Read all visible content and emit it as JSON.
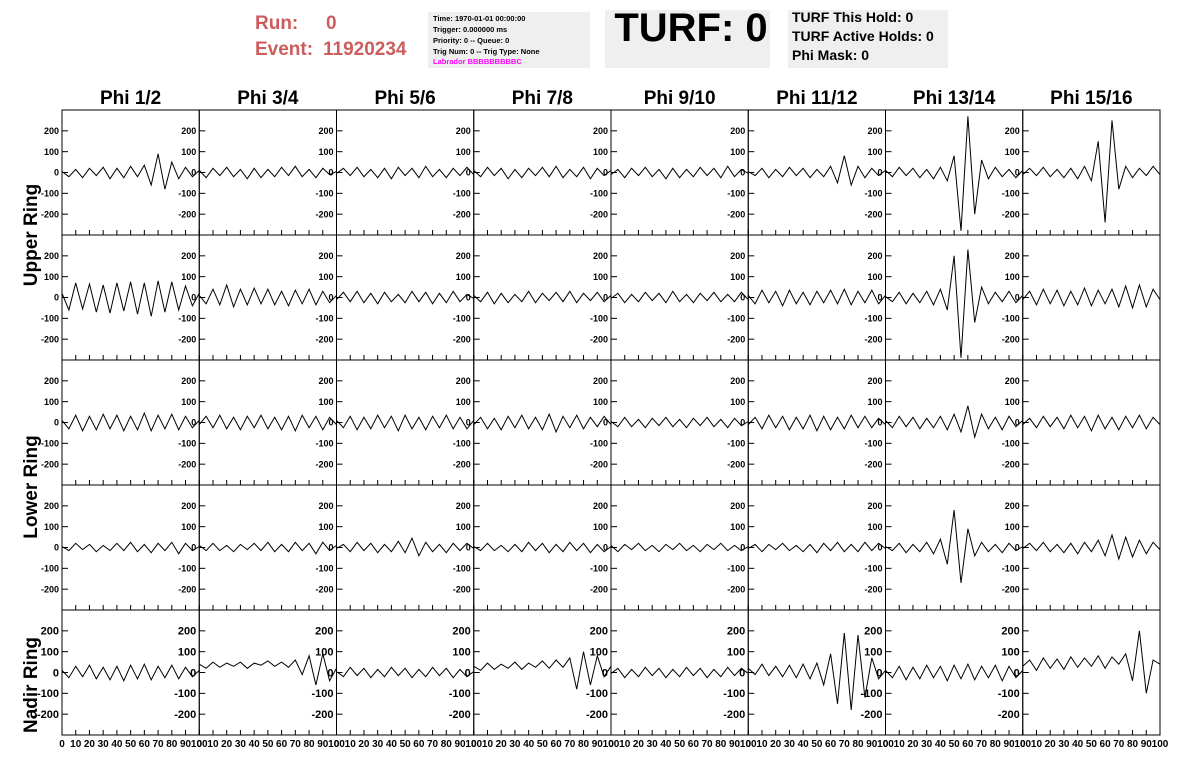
{
  "header": {
    "run_label": "Run:",
    "run": "0",
    "event_label": "Event:",
    "event": "11920234"
  },
  "info": {
    "lines": [
      "Time: 1970-01-01 00:00:00",
      "Trigger: 0.000000 ms",
      "Priority: 0 -- Queue: 0",
      "Trig Num: 0 -- Trig Type: None"
    ],
    "labrador": "Labrador BBBBBBBBBC"
  },
  "turf": "TURF: 0",
  "holds": [
    "TURF This Hold: 0",
    "TURF Active Holds: 0",
    "Phi Mask: 0"
  ],
  "chart_data": {
    "type": "line",
    "columns": [
      "Phi 1/2",
      "Phi 3/4",
      "Phi 5/6",
      "Phi 7/8",
      "Phi 9/10",
      "Phi 11/12",
      "Phi 13/14",
      "Phi 15/16"
    ],
    "row_labels": [
      "Upper Ring",
      "Lower Ring",
      "Nadir Ring"
    ],
    "x": [
      0,
      5,
      10,
      15,
      20,
      25,
      30,
      35,
      40,
      45,
      50,
      55,
      60,
      65,
      70,
      75,
      80,
      85,
      90,
      95,
      100
    ],
    "xlim": [
      0,
      100
    ],
    "ylim": [
      -300,
      300
    ],
    "xticks": [
      0,
      10,
      20,
      30,
      40,
      50,
      60,
      70,
      80,
      90,
      100
    ],
    "yticks": [
      -200,
      -100,
      0,
      100,
      200
    ],
    "color": "#000000",
    "panels": [
      [
        [
          5,
          -20,
          15,
          -25,
          20,
          -15,
          25,
          -30,
          20,
          -25,
          30,
          -20,
          35,
          -60,
          90,
          -80,
          50,
          -30,
          25,
          -20,
          10
        ],
        [
          10,
          -25,
          20,
          -15,
          25,
          -20,
          15,
          -30,
          20,
          -25,
          15,
          -20,
          25,
          -15,
          30,
          -20,
          15,
          -25,
          20,
          -10,
          5
        ],
        [
          -5,
          20,
          -15,
          25,
          -20,
          15,
          -25,
          20,
          -30,
          25,
          -15,
          20,
          -25,
          30,
          -20,
          15,
          -25,
          20,
          -15,
          25,
          -10
        ],
        [
          10,
          -20,
          25,
          -15,
          20,
          -30,
          15,
          -25,
          20,
          -15,
          25,
          -20,
          30,
          -25,
          15,
          -20,
          25,
          -30,
          20,
          -15,
          10
        ],
        [
          -10,
          15,
          -25,
          20,
          -15,
          25,
          -20,
          15,
          -30,
          20,
          -25,
          15,
          -20,
          25,
          -15,
          20,
          -25,
          30,
          -20,
          15,
          -5
        ],
        [
          5,
          -15,
          20,
          -25,
          15,
          -20,
          25,
          -15,
          20,
          -25,
          15,
          -20,
          30,
          -50,
          80,
          -60,
          30,
          -25,
          20,
          -15,
          10
        ],
        [
          10,
          -20,
          25,
          -15,
          20,
          -25,
          15,
          -30,
          25,
          -40,
          80,
          -280,
          270,
          -200,
          60,
          -30,
          25,
          -20,
          15,
          -25,
          10
        ],
        [
          -10,
          20,
          -15,
          25,
          -20,
          15,
          -25,
          20,
          -30,
          30,
          -40,
          150,
          -240,
          250,
          -80,
          30,
          -25,
          20,
          -15,
          30,
          -10
        ]
      ],
      [
        [
          20,
          -60,
          70,
          -55,
          65,
          -70,
          60,
          -75,
          70,
          -65,
          75,
          -80,
          70,
          -90,
          80,
          -70,
          75,
          -60,
          55,
          -40,
          20
        ],
        [
          10,
          -30,
          40,
          -35,
          60,
          -45,
          40,
          -35,
          45,
          -30,
          40,
          -35,
          30,
          -40,
          35,
          -30,
          40,
          -35,
          30,
          -25,
          10
        ],
        [
          -10,
          25,
          -20,
          30,
          -25,
          20,
          -30,
          25,
          -20,
          15,
          -25,
          30,
          -20,
          25,
          -30,
          20,
          -25,
          30,
          -20,
          15,
          -5
        ],
        [
          10,
          -20,
          25,
          -30,
          20,
          -25,
          15,
          -20,
          30,
          -25,
          20,
          -15,
          25,
          -20,
          30,
          -25,
          20,
          -15,
          25,
          -20,
          10
        ],
        [
          -5,
          20,
          -25,
          15,
          -20,
          25,
          -15,
          20,
          -25,
          30,
          -20,
          15,
          -25,
          20,
          -15,
          25,
          -20,
          15,
          -20,
          25,
          -10
        ],
        [
          10,
          -30,
          35,
          -25,
          30,
          -40,
          35,
          -30,
          25,
          -35,
          30,
          -25,
          35,
          -30,
          40,
          -35,
          30,
          -25,
          35,
          -30,
          10
        ],
        [
          5,
          -20,
          25,
          -30,
          20,
          -25,
          30,
          -35,
          40,
          -60,
          200,
          -290,
          230,
          -120,
          50,
          -30,
          25,
          -20,
          30,
          -25,
          10
        ],
        [
          -10,
          30,
          -35,
          40,
          -30,
          35,
          -40,
          30,
          -35,
          45,
          -40,
          35,
          -30,
          40,
          -45,
          55,
          -50,
          60,
          -45,
          40,
          -10
        ]
      ],
      [
        [
          10,
          -30,
          35,
          -40,
          30,
          -35,
          40,
          -30,
          35,
          -40,
          30,
          -35,
          45,
          -40,
          35,
          -30,
          40,
          -35,
          30,
          -25,
          10
        ],
        [
          -10,
          30,
          -25,
          35,
          -30,
          25,
          -35,
          30,
          -25,
          35,
          -30,
          25,
          -35,
          30,
          -40,
          35,
          -25,
          30,
          -35,
          25,
          -10
        ],
        [
          10,
          -25,
          30,
          -35,
          25,
          -30,
          35,
          -25,
          30,
          -40,
          35,
          -30,
          25,
          -35,
          30,
          -25,
          35,
          -30,
          25,
          -30,
          10
        ],
        [
          -10,
          25,
          -30,
          20,
          -35,
          30,
          -25,
          35,
          -30,
          25,
          -35,
          40,
          -45,
          30,
          -25,
          35,
          -30,
          25,
          -20,
          30,
          -10
        ],
        [
          5,
          -20,
          25,
          -20,
          15,
          -25,
          20,
          -15,
          25,
          -20,
          15,
          -25,
          20,
          -15,
          25,
          -20,
          15,
          -25,
          20,
          -15,
          5
        ],
        [
          -10,
          25,
          -30,
          35,
          -25,
          30,
          -35,
          25,
          -30,
          35,
          -40,
          30,
          -35,
          25,
          -30,
          35,
          -25,
          30,
          -25,
          20,
          -10
        ],
        [
          10,
          -25,
          30,
          -20,
          25,
          -30,
          20,
          -25,
          30,
          -35,
          40,
          -45,
          80,
          -70,
          40,
          -30,
          25,
          -35,
          30,
          -20,
          10
        ],
        [
          -10,
          20,
          -25,
          30,
          -20,
          25,
          -30,
          35,
          -25,
          30,
          -40,
          35,
          -30,
          25,
          -35,
          30,
          -25,
          35,
          -30,
          25,
          -10
        ]
      ],
      [
        [
          5,
          -15,
          20,
          -10,
          15,
          -20,
          10,
          -15,
          20,
          -15,
          25,
          -20,
          15,
          -25,
          20,
          -15,
          25,
          -30,
          20,
          -15,
          5
        ],
        [
          10,
          -15,
          20,
          -15,
          10,
          -20,
          15,
          -10,
          20,
          -15,
          25,
          -20,
          15,
          -20,
          25,
          -15,
          20,
          -30,
          25,
          -15,
          10
        ],
        [
          -5,
          15,
          -20,
          25,
          -15,
          20,
          -25,
          15,
          -20,
          30,
          -25,
          45,
          -40,
          25,
          -20,
          15,
          -25,
          20,
          -15,
          20,
          -5
        ],
        [
          5,
          -15,
          20,
          -15,
          10,
          -20,
          15,
          -20,
          25,
          -15,
          20,
          -25,
          15,
          -20,
          25,
          -15,
          20,
          -25,
          15,
          -20,
          5
        ],
        [
          10,
          -20,
          15,
          -10,
          20,
          -15,
          10,
          -20,
          15,
          -10,
          20,
          -15,
          10,
          -20,
          15,
          -10,
          20,
          -15,
          10,
          -15,
          5
        ],
        [
          -5,
          15,
          -20,
          15,
          -10,
          20,
          -15,
          10,
          -20,
          15,
          -25,
          20,
          -15,
          25,
          -20,
          15,
          -20,
          25,
          -15,
          20,
          -5
        ],
        [
          5,
          -15,
          20,
          -25,
          15,
          -20,
          25,
          -30,
          40,
          -80,
          180,
          -170,
          90,
          -40,
          25,
          -20,
          15,
          -25,
          20,
          -15,
          5
        ],
        [
          -5,
          20,
          -15,
          25,
          -20,
          15,
          -25,
          20,
          -30,
          25,
          -20,
          35,
          -40,
          60,
          -55,
          50,
          -45,
          35,
          -30,
          25,
          -10
        ]
      ],
      [
        [
          10,
          -25,
          30,
          -20,
          35,
          -30,
          25,
          -35,
          30,
          -40,
          35,
          -30,
          40,
          -35,
          30,
          -25,
          35,
          -30,
          25,
          -20,
          10
        ],
        [
          40,
          20,
          50,
          25,
          45,
          30,
          50,
          20,
          45,
          35,
          55,
          30,
          50,
          25,
          60,
          -10,
          80,
          -60,
          90,
          -40,
          20
        ],
        [
          5,
          -20,
          25,
          -15,
          20,
          -25,
          15,
          -20,
          25,
          -15,
          20,
          -25,
          15,
          -20,
          25,
          -15,
          20,
          -25,
          15,
          -20,
          5
        ],
        [
          30,
          10,
          45,
          15,
          40,
          20,
          50,
          15,
          45,
          25,
          55,
          20,
          60,
          25,
          70,
          -80,
          100,
          -60,
          80,
          -20,
          30
        ],
        [
          -5,
          20,
          -25,
          15,
          -20,
          25,
          -15,
          20,
          -25,
          15,
          -20,
          25,
          -15,
          20,
          -25,
          15,
          -20,
          25,
          -15,
          20,
          -5
        ],
        [
          20,
          -10,
          40,
          -15,
          30,
          -20,
          35,
          -25,
          40,
          -30,
          45,
          -60,
          90,
          -150,
          190,
          -180,
          180,
          -120,
          70,
          -30,
          10
        ],
        [
          10,
          -25,
          30,
          -35,
          25,
          -30,
          35,
          -25,
          30,
          -40,
          35,
          -30,
          40,
          -35,
          30,
          -25,
          35,
          -40,
          30,
          -25,
          10
        ],
        [
          30,
          60,
          10,
          70,
          20,
          65,
          15,
          75,
          25,
          70,
          30,
          80,
          20,
          75,
          40,
          90,
          -40,
          200,
          -100,
          60,
          40
        ]
      ]
    ]
  }
}
